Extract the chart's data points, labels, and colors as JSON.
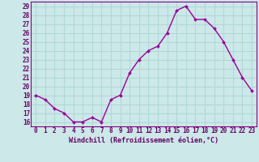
{
  "x": [
    0,
    1,
    2,
    3,
    4,
    5,
    6,
    7,
    8,
    9,
    10,
    11,
    12,
    13,
    14,
    15,
    16,
    17,
    18,
    19,
    20,
    21,
    22,
    23
  ],
  "y": [
    19.0,
    18.5,
    17.5,
    17.0,
    16.0,
    16.0,
    16.5,
    16.0,
    18.5,
    19.0,
    21.5,
    23.0,
    24.0,
    24.5,
    26.0,
    28.5,
    29.0,
    27.5,
    27.5,
    26.5,
    25.0,
    23.0,
    21.0,
    19.5
  ],
  "line_color": "#990099",
  "marker": "D",
  "marker_size": 2.0,
  "linewidth": 1.0,
  "bg_color": "#cce8e8",
  "grid_color": "#b0d8d8",
  "xlabel": "Windchill (Refroidissement éolien,°C)",
  "xlabel_color": "#660066",
  "tick_color": "#660066",
  "ylim": [
    15.5,
    29.5
  ],
  "xlim": [
    -0.5,
    23.5
  ],
  "yticks": [
    16,
    17,
    18,
    19,
    20,
    21,
    22,
    23,
    24,
    25,
    26,
    27,
    28,
    29
  ],
  "xticks": [
    0,
    1,
    2,
    3,
    4,
    5,
    6,
    7,
    8,
    9,
    10,
    11,
    12,
    13,
    14,
    15,
    16,
    17,
    18,
    19,
    20,
    21,
    22,
    23
  ],
  "xtick_labels": [
    "0",
    "1",
    "2",
    "3",
    "4",
    "5",
    "6",
    "7",
    "8",
    "9",
    "10",
    "11",
    "12",
    "13",
    "14",
    "15",
    "16",
    "17",
    "18",
    "19",
    "20",
    "21",
    "22",
    "23"
  ],
  "ytick_labels": [
    "16",
    "17",
    "18",
    "19",
    "20",
    "21",
    "22",
    "23",
    "24",
    "25",
    "26",
    "27",
    "28",
    "29"
  ],
  "xlabel_fontsize": 6.0,
  "tick_fontsize": 5.5,
  "spine_color": "#880088"
}
